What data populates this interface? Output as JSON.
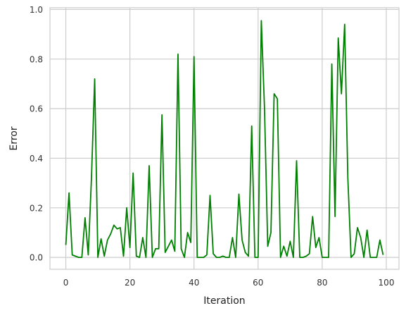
{
  "chart_data": {
    "type": "line",
    "title": "",
    "xlabel": "Iteration",
    "ylabel": "Error",
    "xlim": [
      -4.95,
      103.95
    ],
    "ylim": [
      -0.048,
      1.007
    ],
    "x_ticks": [
      0,
      20,
      40,
      60,
      80,
      100
    ],
    "y_ticks": [
      0.0,
      0.2,
      0.4,
      0.6,
      0.8,
      1.0
    ],
    "x_tick_labels": [
      "0",
      "20",
      "40",
      "60",
      "80",
      "100"
    ],
    "y_tick_labels": [
      "0.0",
      "0.2",
      "0.4",
      "0.6",
      "0.8",
      "1.0"
    ],
    "grid": true,
    "line_color": "#008000",
    "axes_frame_color": "#cccccc",
    "grid_color": "#cccccc",
    "x": [
      0,
      1,
      2,
      3,
      4,
      5,
      6,
      7,
      8,
      9,
      10,
      11,
      12,
      13,
      14,
      15,
      16,
      17,
      18,
      19,
      20,
      21,
      22,
      23,
      24,
      25,
      26,
      27,
      28,
      29,
      30,
      31,
      32,
      33,
      34,
      35,
      36,
      37,
      38,
      39,
      40,
      41,
      42,
      43,
      44,
      45,
      46,
      47,
      48,
      49,
      50,
      51,
      52,
      53,
      54,
      55,
      56,
      57,
      58,
      59,
      60,
      61,
      62,
      63,
      64,
      65,
      66,
      67,
      68,
      69,
      70,
      71,
      72,
      73,
      74,
      75,
      76,
      77,
      78,
      79,
      80,
      81,
      82,
      83,
      84,
      85,
      86,
      87,
      88,
      89,
      90,
      91,
      92,
      93,
      94,
      95,
      96,
      97,
      98,
      99
    ],
    "values": [
      0.05,
      0.26,
      0.01,
      0.005,
      0.0,
      0.0,
      0.16,
      0.01,
      0.32,
      0.72,
      0.0,
      0.075,
      0.005,
      0.07,
      0.095,
      0.13,
      0.115,
      0.12,
      0.005,
      0.2,
      0.04,
      0.34,
      0.005,
      0.0,
      0.08,
      0.0,
      0.37,
      0.0,
      0.035,
      0.035,
      0.575,
      0.02,
      0.045,
      0.07,
      0.025,
      0.82,
      0.035,
      0.0,
      0.1,
      0.06,
      0.81,
      0.0,
      0.0,
      0.0,
      0.01,
      0.25,
      0.015,
      0.0,
      0.0,
      0.005,
      0.0,
      0.0,
      0.08,
      0.0,
      0.255,
      0.07,
      0.02,
      0.005,
      0.53,
      0.0,
      0.0,
      0.955,
      0.6,
      0.045,
      0.1,
      0.66,
      0.64,
      0.0,
      0.045,
      0.005,
      0.065,
      0.0,
      0.39,
      0.0,
      0.0,
      0.005,
      0.015,
      0.165,
      0.04,
      0.08,
      0.0,
      0.0,
      0.0,
      0.78,
      0.165,
      0.885,
      0.66,
      0.94,
      0.32,
      0.0,
      0.015,
      0.12,
      0.08,
      0.0,
      0.11,
      0.0,
      0.0,
      0.0,
      0.07,
      0.01
    ]
  }
}
